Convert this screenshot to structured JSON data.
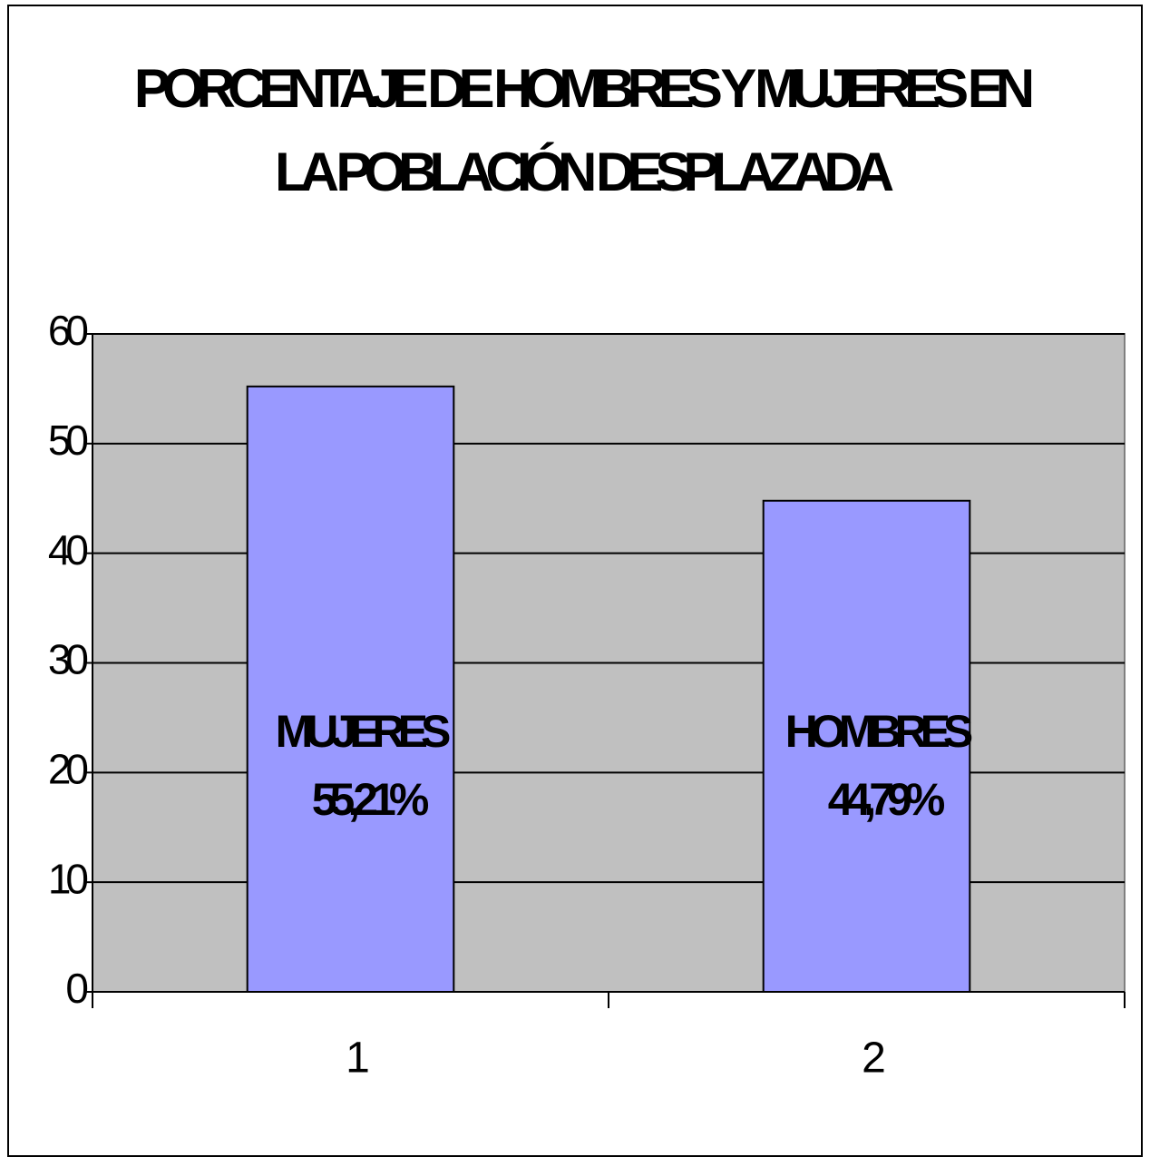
{
  "chart_data": {
    "type": "bar",
    "title": "PORCENTAJE DE HOMBRES Y MUJERES EN LA POBLACIÓN DESPLAZADA",
    "categories": [
      "1",
      "2"
    ],
    "values": [
      55.21,
      44.79
    ],
    "value_labels": [
      "55,21%",
      "44,79%"
    ],
    "bar_labels": [
      "MUJERES",
      "HOMBRES"
    ],
    "color": "#9999ff",
    "plot_background": "#c0c0c0",
    "ylim": [
      0,
      60
    ],
    "yticks": [
      0,
      10,
      20,
      30,
      40,
      50,
      60
    ],
    "grid": true
  }
}
